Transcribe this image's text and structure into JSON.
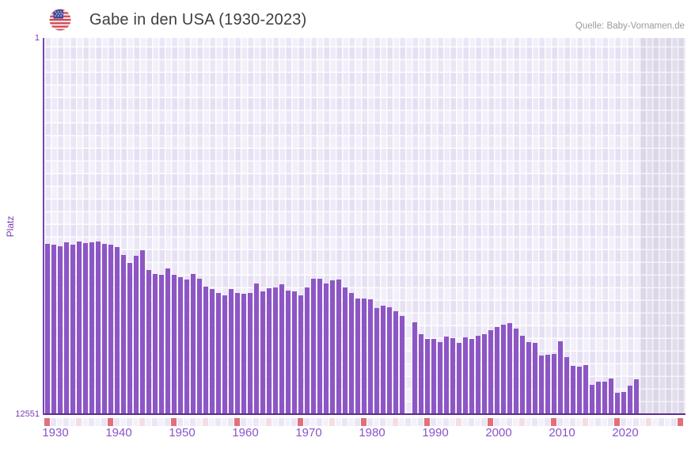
{
  "header": {
    "title": "Gabe in den USA (1930-2023)",
    "source": "Quelle: Baby-Vornamen.de",
    "flag": "us-flag-icon"
  },
  "y_axis": {
    "label": "Platz",
    "top_tick": "1",
    "bottom_tick": "12551"
  },
  "x_axis": {
    "ticks": [
      "1930",
      "1940",
      "1950",
      "1960",
      "1970",
      "1980",
      "1990",
      "2000",
      "2010",
      "2020"
    ]
  },
  "colors": {
    "bar": "#8d56c5",
    "x_axis_line": "#5b2d90",
    "y_axis_line": "#7445ad",
    "axis_text": "#7b3db3",
    "x_tick_text": "#8a52c8",
    "decade_marker": "#e2707a",
    "half_decade_marker": "#f5dde4",
    "strip_cell_even": "#f4f1fb",
    "strip_cell_odd": "#ebe6f5",
    "title_text": "#3f3f3f",
    "source_text": "#9b9b9b"
  },
  "chart_data": {
    "type": "bar",
    "title": "Gabe in den USA (1930-2023)",
    "xlabel": "",
    "ylabel": "Platz",
    "y_axis_inverted": true,
    "ylim": [
      1,
      12551
    ],
    "x_start": 1930,
    "x_end_data": 2023,
    "x_end_axis": 2030,
    "missing_years": [
      1987
    ],
    "no_data_from": 2024,
    "legend": "none",
    "grid": "checkerboard",
    "values_note": "estimated rank (Platz) per year; lower = more popular; null = no data",
    "values": [
      6860,
      6880,
      6930,
      6800,
      6880,
      6780,
      6830,
      6800,
      6780,
      6860,
      6880,
      6960,
      7220,
      7490,
      7250,
      7070,
      7730,
      7860,
      7880,
      7670,
      7880,
      7960,
      8040,
      7860,
      8020,
      8280,
      8360,
      8490,
      8570,
      8360,
      8490,
      8520,
      8490,
      8170,
      8440,
      8330,
      8310,
      8200,
      8410,
      8440,
      8570,
      8310,
      8020,
      8020,
      8170,
      8070,
      8040,
      8310,
      8490,
      8670,
      8670,
      8700,
      8990,
      8910,
      8960,
      9100,
      9250,
      null,
      9470,
      9860,
      10020,
      10020,
      10120,
      9940,
      9990,
      10150,
      9970,
      10020,
      9910,
      9860,
      9730,
      9620,
      9540,
      9490,
      9680,
      9910,
      10120,
      10150,
      10570,
      10550,
      10520,
      10100,
      10630,
      10920,
      10940,
      10890,
      11550,
      11440,
      11440,
      11340,
      11810,
      11790,
      11580,
      11360
    ]
  }
}
